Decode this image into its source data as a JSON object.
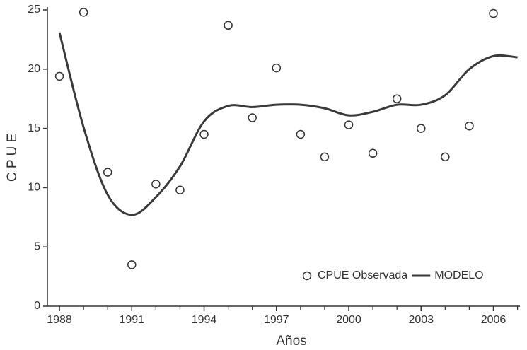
{
  "chart_data": {
    "type": "scatter",
    "x_label": "Años",
    "y_label": "C P U E",
    "xlim": [
      1987.5,
      2007.1
    ],
    "ylim": [
      0,
      25
    ],
    "xticks": [
      1988,
      1991,
      1994,
      1997,
      2000,
      2003,
      2006
    ],
    "xminorticks": [
      1989,
      1990,
      1992,
      1993,
      1995,
      1996,
      1998,
      1999,
      2001,
      2002,
      2004,
      2005,
      2007
    ],
    "yticks": [
      0,
      5,
      10,
      15,
      20,
      25
    ],
    "legend": "lower right",
    "series": [
      {
        "name": "CPUE Observada",
        "type": "scatter",
        "color": "#333333",
        "x": [
          1988,
          1989,
          1990,
          1991,
          1992,
          1993,
          1994,
          1995,
          1996,
          1997,
          1998,
          1999,
          2000,
          2001,
          2002,
          2003,
          2004,
          2005,
          2006
        ],
        "values": [
          19.4,
          24.8,
          11.3,
          3.5,
          10.3,
          9.8,
          14.5,
          23.7,
          15.9,
          20.1,
          14.5,
          12.6,
          15.3,
          12.9,
          17.5,
          15.0,
          12.6,
          15.2,
          24.7
        ]
      },
      {
        "name": "MODELO",
        "type": "line",
        "color": "#3a3a3a",
        "x": [
          1988,
          1989,
          1990,
          1991,
          1992,
          1993,
          1994,
          1995,
          1996,
          1997,
          1998,
          1999,
          2000,
          2001,
          2002,
          2003,
          2004,
          2005,
          2006,
          2007
        ],
        "values": [
          23.1,
          15.1,
          9.4,
          7.7,
          9.2,
          11.8,
          15.6,
          16.9,
          16.8,
          17.0,
          17.0,
          16.7,
          16.1,
          16.4,
          17.0,
          17.0,
          17.8,
          20.0,
          21.1,
          21.0
        ]
      }
    ]
  }
}
